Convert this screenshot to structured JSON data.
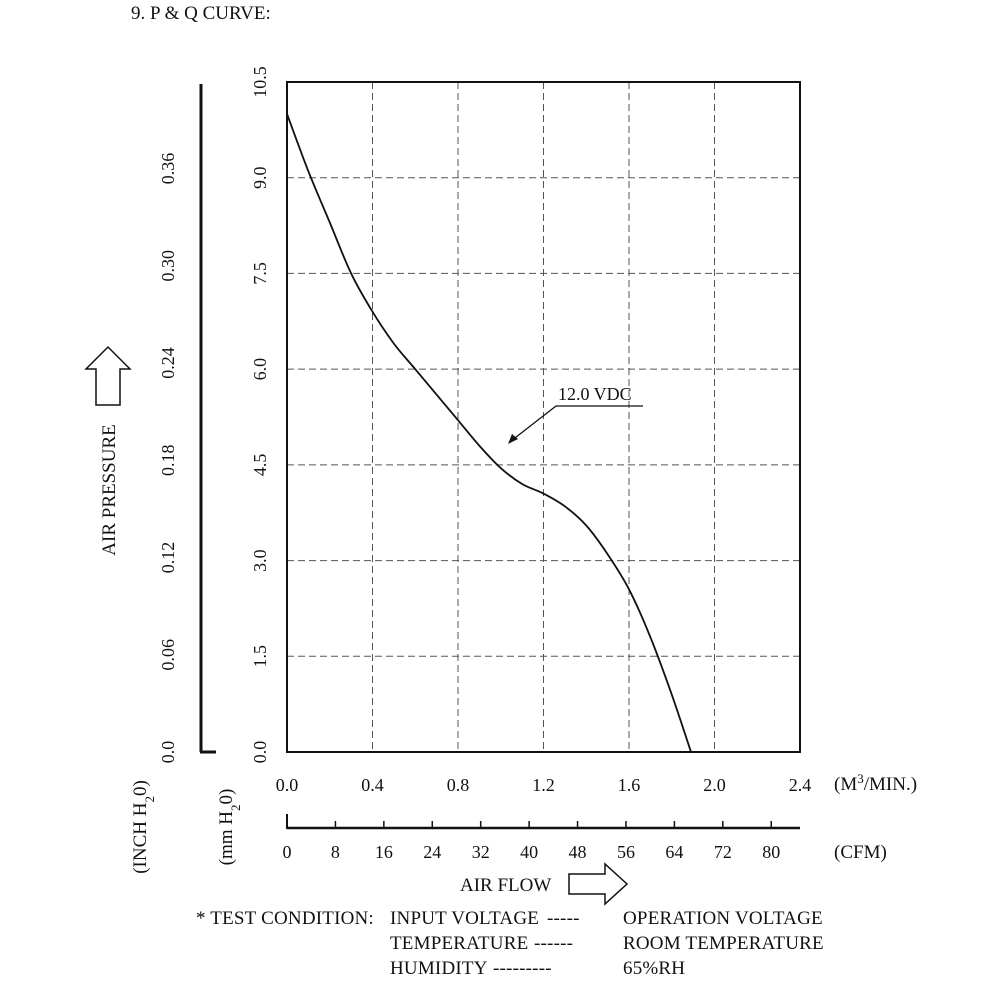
{
  "section_title": "9. P & Q CURVE:",
  "chart_data": {
    "type": "line",
    "series": [
      {
        "name": "12.0 VDC",
        "x": [
          0.0,
          0.1,
          0.2,
          0.3,
          0.4,
          0.5,
          0.6,
          0.7,
          0.8,
          0.9,
          1.0,
          1.1,
          1.2,
          1.3,
          1.4,
          1.5,
          1.6,
          1.7,
          1.8,
          1.89
        ],
        "y": [
          10.0,
          9.1,
          8.3,
          7.5,
          6.9,
          6.4,
          6.0,
          5.6,
          5.2,
          4.8,
          4.45,
          4.2,
          4.05,
          3.85,
          3.55,
          3.1,
          2.55,
          1.8,
          0.9,
          0.0
        ]
      }
    ],
    "series_label": "12.0 VDC",
    "x_primary": {
      "unit": "(M³/MIN.)",
      "range": [
        0,
        2.4
      ],
      "ticks": [
        "0.0",
        "0.4",
        "0.8",
        "1.2",
        "1.6",
        "2.0",
        "2.4"
      ]
    },
    "x_secondary": {
      "unit": "(CFM)",
      "range": [
        0,
        84.75
      ],
      "ticks": [
        "0",
        "8",
        "16",
        "24",
        "32",
        "40",
        "48",
        "56",
        "64",
        "72",
        "80"
      ]
    },
    "y_primary": {
      "unit": "(mm H₂0)",
      "range": [
        0,
        10.5
      ],
      "ticks": [
        "0.0",
        "1.5",
        "3.0",
        "4.5",
        "6.0",
        "7.5",
        "9.0",
        "10.5"
      ]
    },
    "y_secondary": {
      "unit": "(INCH H₂0)",
      "range": [
        0,
        0.4134
      ],
      "ticks": [
        "0.0",
        "0.06",
        "0.12",
        "0.18",
        "0.24",
        "0.30",
        "0.36"
      ]
    },
    "xlabel": "AIR FLOW",
    "ylabel": "AIR PRESSURE",
    "grid": true
  },
  "test_condition": {
    "heading": "* TEST CONDITION:",
    "lines": [
      {
        "label": "INPUT VOLTAGE",
        "dashes": "-----",
        "value": "OPERATION VOLTAGE"
      },
      {
        "label": "TEMPERATURE",
        "dashes": "------",
        "value": "ROOM TEMPERATURE"
      },
      {
        "label": "HUMIDITY",
        "dashes": "---------",
        "value": "65%RH"
      }
    ]
  }
}
